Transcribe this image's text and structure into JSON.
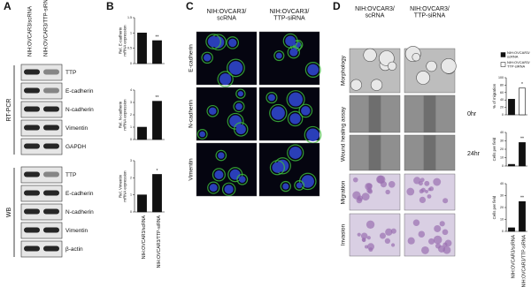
{
  "panels": {
    "A": {
      "letter": "A",
      "columns": [
        "NIH:OVCAR3/scRNA",
        "NIH:OVCAR3/TTP-siRNA"
      ],
      "groups": [
        {
          "label": "RT-PCR",
          "bands": [
            "TTP",
            "E-cadherin",
            "N-cadherin",
            "Vimentin",
            "GAPDH"
          ]
        },
        {
          "label": "WB",
          "bands": [
            "TTP",
            "E-cadherin",
            "N-cadherin",
            "Vimentin",
            "β-actin"
          ]
        }
      ]
    },
    "B": {
      "letter": "B"
    },
    "C": {
      "letter": "C",
      "columns": [
        [
          "NIH:OVCAR3/",
          "scRNA"
        ],
        [
          "NIH:OVCAR3/",
          "TTP-siRNA"
        ]
      ],
      "rows": [
        "E-cadherin",
        "N-cadherin",
        "Vimentin"
      ]
    },
    "D": {
      "letter": "D",
      "columns": [
        [
          "NIH:OVCAR3/",
          "scRNA"
        ],
        [
          "NIH:OVCAR3/",
          "TTP-siRNA"
        ]
      ],
      "rows": [
        "Morphology",
        "Wound healing assay",
        "Migration",
        "Invasion"
      ],
      "time_labels": [
        "0hr",
        "24hr"
      ]
    }
  },
  "chart_data": [
    {
      "type": "bar",
      "ylabel": [
        "Rel. E-cadherin",
        "mRNA expression"
      ],
      "values": [
        1,
        0.75
      ],
      "colors": [
        "#111111",
        "#111111"
      ],
      "ylim": [
        0,
        1.5
      ],
      "yticks": [
        0,
        0.5,
        1,
        1.5
      ],
      "annotation": "**"
    },
    {
      "type": "bar",
      "ylabel": [
        "Rel. N-cadherin",
        "mRNA expression"
      ],
      "values": [
        1,
        3.1
      ],
      "colors": [
        "#111111",
        "#111111"
      ],
      "ylim": [
        0,
        4
      ],
      "yticks": [
        0,
        1,
        2,
        3,
        4
      ],
      "annotation": "**"
    },
    {
      "type": "bar",
      "ylabel": [
        "Rel. Vimentin",
        "mRNA expression"
      ],
      "values": [
        1,
        2.2
      ],
      "colors": [
        "#111111",
        "#111111"
      ],
      "ylim": [
        0,
        3
      ],
      "yticks": [
        0,
        1,
        2,
        3
      ],
      "annotation": "*",
      "categories": [
        "NIH:OVCAR3/scRNA",
        "NIH:OVCAR3/TTP-siRNA"
      ]
    },
    {
      "type": "bar",
      "ylabel": [
        "% of migration"
      ],
      "values": [
        42,
        72
      ],
      "colors": [
        "#111111",
        "#ffffff"
      ],
      "ylim": [
        0,
        100
      ],
      "yticks": [
        0,
        20,
        40,
        60,
        80,
        100
      ],
      "annotation": "*",
      "legend": [
        [
          "NIH:OVCAR3/",
          "scRNA"
        ],
        [
          "NIH:OVCAR3/",
          "TTP-siRNA"
        ]
      ]
    },
    {
      "type": "bar",
      "ylabel": [
        "Cells per field"
      ],
      "values": [
        2,
        28
      ],
      "colors": [
        "#111111",
        "#111111"
      ],
      "ylim": [
        0,
        40
      ],
      "yticks": [
        0,
        10,
        20,
        30,
        40
      ],
      "annotation": "**"
    },
    {
      "type": "bar",
      "ylabel": [
        "Cells per field"
      ],
      "values": [
        3,
        25
      ],
      "colors": [
        "#111111",
        "#111111"
      ],
      "ylim": [
        0,
        40
      ],
      "yticks": [
        0,
        10,
        20,
        30,
        40
      ],
      "annotation": "**",
      "categories": [
        "NIH:OVCAR3/scRNA",
        "NIH:OVCAR3/TTP-siRNA"
      ]
    }
  ]
}
